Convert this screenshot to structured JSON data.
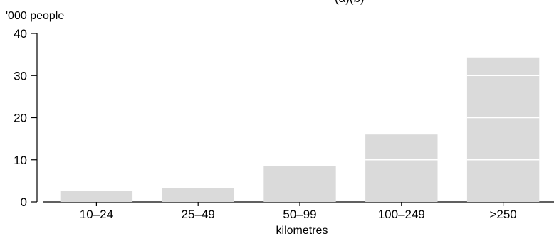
{
  "chart_data": {
    "type": "bar",
    "title": "(a)(b)",
    "ylabel": "'000 people",
    "xlabel": "kilometres",
    "categories": [
      "10–24",
      "25–49",
      "50–99",
      "100–249",
      ">250"
    ],
    "values": [
      2.7,
      3.3,
      8.5,
      16.0,
      34.3
    ],
    "ylim": [
      0,
      40
    ],
    "yticks": [
      0,
      10,
      20,
      30,
      40
    ],
    "grid": false,
    "legend": "none",
    "bar_color": "#dadada",
    "axis_color": "#000000"
  }
}
